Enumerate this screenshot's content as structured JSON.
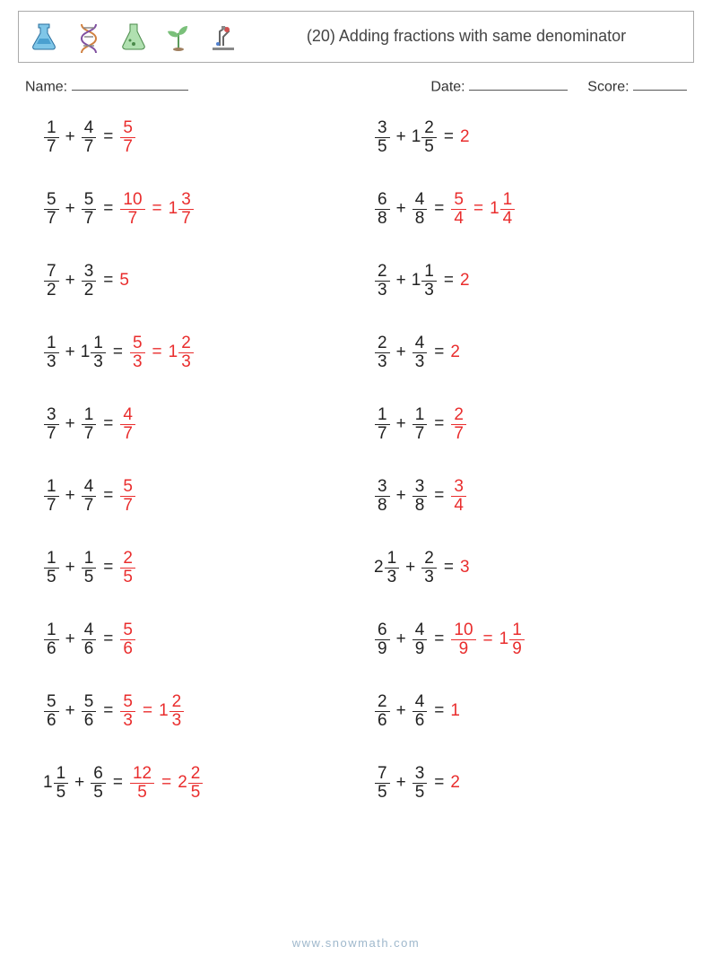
{
  "header": {
    "title": "(20) Adding fractions with same denominator"
  },
  "labels": {
    "name": "Name:",
    "date": "Date:",
    "score": "Score:"
  },
  "colors": {
    "answer": "#e92d2d",
    "text": "#222",
    "border": "#aaaaaa",
    "footer": "#9fb8cc"
  },
  "underline_widths": {
    "name": 130,
    "date": 110,
    "score": 60
  },
  "footer": "www.snowmath.com",
  "problems": [
    {
      "a": {
        "n": 1,
        "d": 7
      },
      "b": {
        "n": 4,
        "d": 7
      },
      "ans": [
        {
          "n": 5,
          "d": 7
        }
      ]
    },
    {
      "a": {
        "n": 3,
        "d": 5
      },
      "b": {
        "w": 1,
        "n": 2,
        "d": 5
      },
      "ans": [
        {
          "int": 2
        }
      ]
    },
    {
      "a": {
        "n": 5,
        "d": 7
      },
      "b": {
        "n": 5,
        "d": 7
      },
      "ans": [
        {
          "n": 10,
          "d": 7
        },
        {
          "w": 1,
          "n": 3,
          "d": 7
        }
      ]
    },
    {
      "a": {
        "n": 6,
        "d": 8
      },
      "b": {
        "n": 4,
        "d": 8
      },
      "ans": [
        {
          "n": 5,
          "d": 4
        },
        {
          "w": 1,
          "n": 1,
          "d": 4
        }
      ]
    },
    {
      "a": {
        "n": 7,
        "d": 2
      },
      "b": {
        "n": 3,
        "d": 2
      },
      "ans": [
        {
          "int": 5
        }
      ]
    },
    {
      "a": {
        "n": 2,
        "d": 3
      },
      "b": {
        "w": 1,
        "n": 1,
        "d": 3
      },
      "ans": [
        {
          "int": 2
        }
      ]
    },
    {
      "a": {
        "n": 1,
        "d": 3
      },
      "b": {
        "w": 1,
        "n": 1,
        "d": 3
      },
      "ans": [
        {
          "n": 5,
          "d": 3
        },
        {
          "w": 1,
          "n": 2,
          "d": 3
        }
      ]
    },
    {
      "a": {
        "n": 2,
        "d": 3
      },
      "b": {
        "n": 4,
        "d": 3
      },
      "ans": [
        {
          "int": 2
        }
      ]
    },
    {
      "a": {
        "n": 3,
        "d": 7
      },
      "b": {
        "n": 1,
        "d": 7
      },
      "ans": [
        {
          "n": 4,
          "d": 7
        }
      ]
    },
    {
      "a": {
        "n": 1,
        "d": 7
      },
      "b": {
        "n": 1,
        "d": 7
      },
      "ans": [
        {
          "n": 2,
          "d": 7
        }
      ]
    },
    {
      "a": {
        "n": 1,
        "d": 7
      },
      "b": {
        "n": 4,
        "d": 7
      },
      "ans": [
        {
          "n": 5,
          "d": 7
        }
      ]
    },
    {
      "a": {
        "n": 3,
        "d": 8
      },
      "b": {
        "n": 3,
        "d": 8
      },
      "ans": [
        {
          "n": 3,
          "d": 4
        }
      ]
    },
    {
      "a": {
        "n": 1,
        "d": 5
      },
      "b": {
        "n": 1,
        "d": 5
      },
      "ans": [
        {
          "n": 2,
          "d": 5
        }
      ]
    },
    {
      "a": {
        "w": 2,
        "n": 1,
        "d": 3
      },
      "b": {
        "n": 2,
        "d": 3
      },
      "ans": [
        {
          "int": 3
        }
      ]
    },
    {
      "a": {
        "n": 1,
        "d": 6
      },
      "b": {
        "n": 4,
        "d": 6
      },
      "ans": [
        {
          "n": 5,
          "d": 6
        }
      ]
    },
    {
      "a": {
        "n": 6,
        "d": 9
      },
      "b": {
        "n": 4,
        "d": 9
      },
      "ans": [
        {
          "n": 10,
          "d": 9
        },
        {
          "w": 1,
          "n": 1,
          "d": 9
        }
      ]
    },
    {
      "a": {
        "n": 5,
        "d": 6
      },
      "b": {
        "n": 5,
        "d": 6
      },
      "ans": [
        {
          "n": 5,
          "d": 3
        },
        {
          "w": 1,
          "n": 2,
          "d": 3
        }
      ]
    },
    {
      "a": {
        "n": 2,
        "d": 6
      },
      "b": {
        "n": 4,
        "d": 6
      },
      "ans": [
        {
          "int": 1
        }
      ]
    },
    {
      "a": {
        "w": 1,
        "n": 1,
        "d": 5
      },
      "b": {
        "n": 6,
        "d": 5
      },
      "ans": [
        {
          "n": 12,
          "d": 5
        },
        {
          "w": 2,
          "n": 2,
          "d": 5
        }
      ]
    },
    {
      "a": {
        "n": 7,
        "d": 5
      },
      "b": {
        "n": 3,
        "d": 5
      },
      "ans": [
        {
          "int": 2
        }
      ]
    }
  ]
}
